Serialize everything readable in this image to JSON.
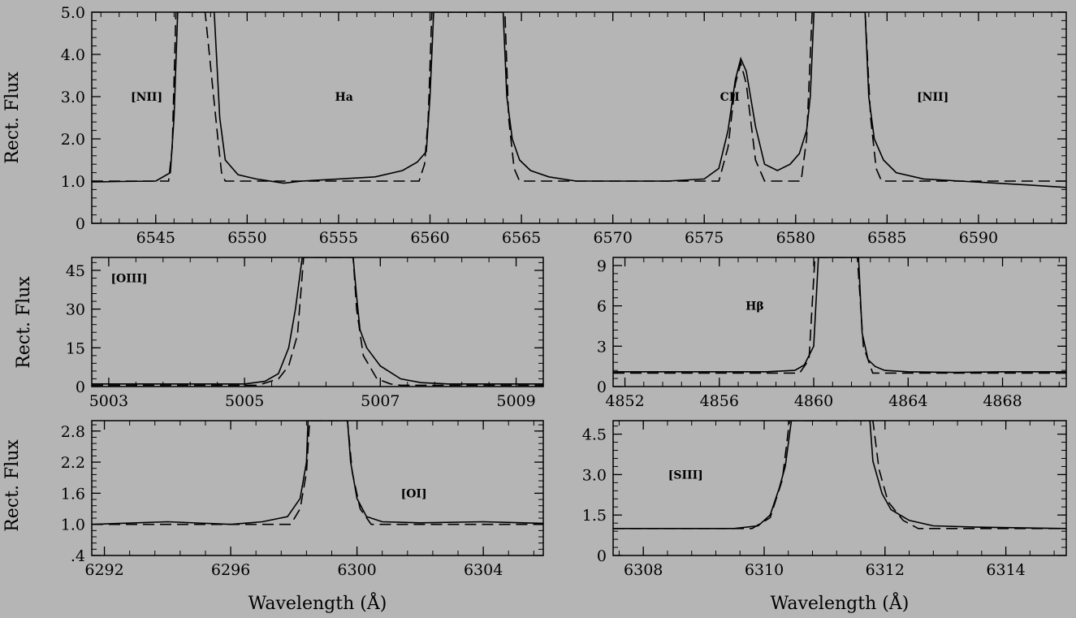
{
  "chart_data": [
    {
      "id": "p1",
      "type": "line",
      "xlim": [
        6541.5,
        6594.8
      ],
      "ylim": [
        0,
        5
      ],
      "xticks": [
        6545,
        6550,
        6555,
        6560,
        6565,
        6570,
        6575,
        6580,
        6585,
        6590
      ],
      "xtick_labels": [
        "6545",
        "6550",
        "6555",
        "6560",
        "6565",
        "6570",
        "6575",
        "6580",
        "6585",
        "6590"
      ],
      "yticks": [
        0,
        1,
        2,
        3,
        4,
        5
      ],
      "ytick_labels": [
        "0",
        "1.0",
        "2.0",
        "3.0",
        "4.0",
        "5.0"
      ],
      "xlabel": "",
      "ylabel": "Rect. Flux",
      "annotations": [
        {
          "text": "[NII]",
          "x": 6544.5,
          "y": 3.0
        },
        {
          "text": "Ha",
          "x": 6555.3,
          "y": 3.0
        },
        {
          "text": "CII",
          "x": 6576.4,
          "y": 3.0
        },
        {
          "text": "[NII]",
          "x": 6587.5,
          "y": 3.0
        }
      ],
      "series": [
        {
          "style": "solid",
          "x": [
            6541.5,
            6543,
            6545,
            6545.8,
            6546.0,
            6546.2,
            6547.6,
            6548.2,
            6548.5,
            6548.8,
            6549.5,
            6550.5,
            6552,
            6553,
            6555,
            6557,
            6558.5,
            6559.3,
            6559.8,
            6560.0,
            6560.2,
            6564.0,
            6564.2,
            6564.5,
            6564.9,
            6565.5,
            6566.5,
            6568,
            6570,
            6573,
            6575,
            6575.8,
            6576.3,
            6576.7,
            6577.0,
            6577.3,
            6577.8,
            6578.3,
            6579.0,
            6579.7,
            6580.2,
            6580.6,
            6580.8,
            6581.0,
            6583.8,
            6584.0,
            6584.3,
            6584.8,
            6585.5,
            6587,
            6589,
            6591,
            6593,
            6594.8
          ],
          "y": [
            0.98,
            0.99,
            1.0,
            1.2,
            2.5,
            5.0,
            5.0,
            5.0,
            2.5,
            1.5,
            1.15,
            1.05,
            0.95,
            1.0,
            1.05,
            1.1,
            1.25,
            1.45,
            1.7,
            3.0,
            5.0,
            5.0,
            3.0,
            2.0,
            1.5,
            1.25,
            1.1,
            1.0,
            1.0,
            1.0,
            1.05,
            1.3,
            2.2,
            3.4,
            3.9,
            3.6,
            2.3,
            1.4,
            1.25,
            1.4,
            1.65,
            2.2,
            3.0,
            5.0,
            5.0,
            3.0,
            2.0,
            1.5,
            1.2,
            1.05,
            1.0,
            0.95,
            0.9,
            0.85
          ]
        },
        {
          "style": "dashed",
          "x": [
            6541.5,
            6545.7,
            6545.9,
            6546.1,
            6547.7,
            6548.4,
            6548.6,
            6548.8,
            6559.4,
            6559.7,
            6559.9,
            6560.1,
            6564.1,
            6564.3,
            6564.6,
            6564.9,
            6575.8,
            6576.3,
            6576.7,
            6577.0,
            6577.3,
            6577.8,
            6578.3,
            6580.3,
            6580.6,
            6580.9,
            6583.8,
            6584.1,
            6584.4,
            6584.7,
            6594.8
          ],
          "y": [
            1.0,
            1.0,
            1.8,
            5.0,
            5.0,
            2.0,
            1.2,
            1.0,
            1.0,
            1.4,
            2.5,
            5.0,
            5.0,
            2.5,
            1.3,
            1.0,
            1.0,
            1.8,
            3.3,
            3.8,
            3.3,
            1.5,
            1.0,
            1.0,
            2.0,
            5.0,
            5.0,
            2.5,
            1.3,
            1.0,
            1.0
          ]
        }
      ]
    },
    {
      "id": "p2",
      "type": "line",
      "xlim": [
        5002.75,
        5009.4
      ],
      "ylim": [
        0,
        50
      ],
      "xticks": [
        5003,
        5005,
        5007,
        5009
      ],
      "xtick_labels": [
        "5003",
        "5005",
        "5007",
        "5009"
      ],
      "yticks": [
        0,
        15,
        30,
        45
      ],
      "ytick_labels": [
        "0",
        "15",
        "30",
        "45"
      ],
      "xlabel": "",
      "ylabel": "Rect. Flux",
      "annotations": [
        {
          "text": "[OIII]",
          "x": 5003.3,
          "y": 42
        }
      ],
      "series": [
        {
          "style": "solid",
          "x": [
            5002.75,
            5004,
            5005,
            5005.3,
            5005.5,
            5005.65,
            5005.75,
            5005.85,
            5006.6,
            5006.65,
            5006.7,
            5006.8,
            5007.0,
            5007.3,
            5007.6,
            5008,
            5009.4
          ],
          "y": [
            1.0,
            1.0,
            1.0,
            2,
            5,
            15,
            30,
            50,
            50,
            35,
            22,
            15,
            8,
            3,
            1.5,
            1.0,
            1.0
          ]
        },
        {
          "style": "dashed",
          "x": [
            5002.75,
            5005.2,
            5005.5,
            5005.65,
            5005.78,
            5005.87,
            5006.6,
            5006.65,
            5006.75,
            5006.95,
            5007.15,
            5007.3,
            5009.4
          ],
          "y": [
            0.5,
            0.5,
            3,
            8,
            20,
            50,
            50,
            30,
            12,
            3,
            1,
            0.5,
            0.5
          ]
        }
      ]
    },
    {
      "id": "p3",
      "type": "line",
      "xlim": [
        4851.5,
        4870.7
      ],
      "ylim": [
        0,
        9.6
      ],
      "xticks": [
        4852,
        4856,
        4860,
        4864,
        4868
      ],
      "xtick_labels": [
        "4852",
        "4856",
        "4860",
        "4864",
        "4868"
      ],
      "yticks": [
        0,
        3,
        6,
        9
      ],
      "ytick_labels": [
        "0",
        "3",
        "6",
        "9"
      ],
      "xlabel": "",
      "ylabel": "",
      "annotations": [
        {
          "text": "Hβ",
          "x": 4857.5,
          "y": 6.0
        }
      ],
      "series": [
        {
          "style": "solid",
          "x": [
            4851.5,
            4855,
            4858,
            4859.2,
            4859.6,
            4860.0,
            4860.2,
            4861.9,
            4862.05,
            4862.3,
            4862.6,
            4863,
            4864,
            4866,
            4868,
            4870.7
          ],
          "y": [
            1.1,
            1.1,
            1.1,
            1.2,
            1.6,
            3,
            9.6,
            9.6,
            4,
            2,
            1.5,
            1.2,
            1.1,
            1.05,
            1.1,
            1.1
          ]
        },
        {
          "style": "dashed",
          "x": [
            4851.5,
            4859.4,
            4859.8,
            4860.05,
            4861.85,
            4862.1,
            4862.5,
            4870.7
          ],
          "y": [
            1.0,
            1.0,
            2,
            9.6,
            9.6,
            3,
            1.0,
            1.0
          ]
        }
      ]
    },
    {
      "id": "p4",
      "type": "line",
      "xlim": [
        6291.6,
        6305.9
      ],
      "ylim": [
        0.4,
        3.0
      ],
      "xticks": [
        6292,
        6296,
        6300,
        6304
      ],
      "xtick_labels": [
        "6292",
        "6296",
        "6300",
        "6304"
      ],
      "yticks": [
        0.4,
        1.0,
        1.6,
        2.2,
        2.8
      ],
      "ytick_labels": [
        ".4",
        "1.0",
        "1.6",
        "2.2",
        "2.8"
      ],
      "xlabel": "Wavelength (Å)",
      "ylabel": "Rect. Flux",
      "annotations": [
        {
          "text": "[OI]",
          "x": 6301.8,
          "y": 1.6
        }
      ],
      "series": [
        {
          "style": "solid",
          "x": [
            6291.6,
            6294,
            6296,
            6297,
            6297.8,
            6298.2,
            6298.4,
            6298.45,
            6299.7,
            6299.8,
            6300.0,
            6300.3,
            6300.8,
            6302,
            6304,
            6305.9
          ],
          "y": [
            1.0,
            1.05,
            1.0,
            1.05,
            1.15,
            1.5,
            2.2,
            3.0,
            3.0,
            2.2,
            1.5,
            1.15,
            1.05,
            1.03,
            1.05,
            1.02
          ]
        },
        {
          "style": "dashed",
          "x": [
            6291.6,
            6297.9,
            6298.2,
            6298.4,
            6298.5,
            6299.7,
            6299.85,
            6300.1,
            6300.45,
            6305.9
          ],
          "y": [
            1.0,
            1.0,
            1.3,
            2.0,
            3.0,
            3.0,
            2.0,
            1.3,
            1.0,
            1.0
          ]
        }
      ]
    },
    {
      "id": "p5",
      "type": "line",
      "xlim": [
        6307.5,
        6315.0
      ],
      "ylim": [
        0,
        5.0
      ],
      "xticks": [
        6308,
        6310,
        6312,
        6314
      ],
      "xtick_labels": [
        "6308",
        "6310",
        "6312",
        "6314"
      ],
      "yticks": [
        0,
        1.5,
        3.0,
        4.5
      ],
      "ytick_labels": [
        "0",
        "1.5",
        "3.0",
        "4.5"
      ],
      "xlabel": "Wavelength (Å)",
      "ylabel": "",
      "annotations": [
        {
          "text": "[SIII]",
          "x": 6308.7,
          "y": 3.0
        }
      ],
      "series": [
        {
          "style": "solid",
          "x": [
            6307.5,
            6309.5,
            6309.9,
            6310.1,
            6310.25,
            6310.35,
            6310.45,
            6311.75,
            6311.8,
            6311.95,
            6312.1,
            6312.4,
            6312.8,
            6313.5,
            6315.0
          ],
          "y": [
            1.0,
            1.0,
            1.1,
            1.5,
            2.5,
            3.3,
            5.0,
            5.0,
            3.5,
            2.3,
            1.7,
            1.3,
            1.1,
            1.05,
            1.0
          ]
        },
        {
          "style": "dashed",
          "x": [
            6307.5,
            6309.8,
            6310.1,
            6310.3,
            6310.42,
            6311.8,
            6311.9,
            6312.05,
            6312.3,
            6312.55,
            6315.0
          ],
          "y": [
            1.0,
            1.0,
            1.4,
            2.8,
            5.0,
            5.0,
            3.2,
            2.0,
            1.3,
            1.0,
            1.0
          ]
        }
      ]
    }
  ]
}
